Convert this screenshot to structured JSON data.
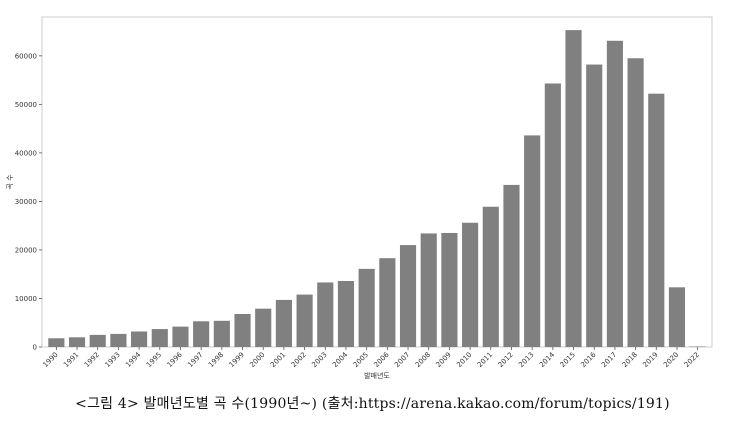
{
  "chart_data": {
    "type": "bar",
    "title": "",
    "xlabel": "발매년도",
    "ylabel": "곡 수",
    "categories": [
      "1990",
      "1991",
      "1992",
      "1993",
      "1994",
      "1995",
      "1996",
      "1997",
      "1998",
      "1999",
      "2000",
      "2001",
      "2002",
      "2003",
      "2004",
      "2005",
      "2006",
      "2007",
      "2008",
      "2009",
      "2010",
      "2011",
      "2012",
      "2013",
      "2014",
      "2015",
      "2016",
      "2017",
      "2018",
      "2019",
      "2020",
      "2022"
    ],
    "values": [
      1800,
      2000,
      2500,
      2700,
      3200,
      3700,
      4200,
      5300,
      5400,
      6800,
      7900,
      9700,
      10800,
      13300,
      13600,
      16100,
      18300,
      21000,
      23400,
      23500,
      25600,
      28900,
      33400,
      43600,
      54300,
      65300,
      58200,
      63100,
      59500,
      52200,
      12300,
      100
    ],
    "ylim": [
      0,
      68000
    ],
    "yticks": [
      0,
      10000,
      20000,
      30000,
      40000,
      50000,
      60000
    ],
    "grid": false,
    "bar_color": "#808080",
    "axes_border_color": "#cccccc"
  },
  "caption": "<그림 4> 발매년도별 곡 수(1990년~) (출처:https://arena.kakao.com/forum/topics/191)"
}
